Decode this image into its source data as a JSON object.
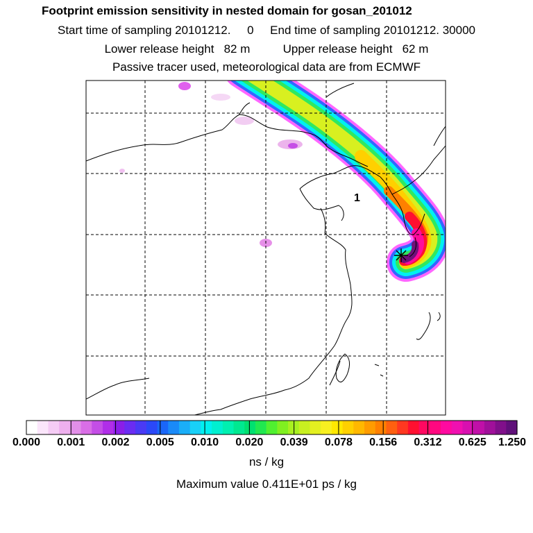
{
  "header": {
    "title": "Footprint emission sensitivity in nested domain for gosan_201012",
    "sampling_line": "Start time of sampling 20101212.     0     End time of sampling 20101212. 30000",
    "release_line": "Lower release height   82 m          Upper release height   62 m",
    "tracer_line": "Passive tracer used, meteorological data are from ECMWF"
  },
  "map": {
    "release_label": "1",
    "release_marker": "star-marker"
  },
  "colorbar": {
    "ticks": [
      "0.000",
      "0.001",
      "0.002",
      "0.005",
      "0.010",
      "0.020",
      "0.039",
      "0.078",
      "0.156",
      "0.312",
      "0.625",
      "1.250"
    ],
    "colors": [
      "#ffffff",
      "#fbe6fb",
      "#f5ccf5",
      "#eeb0ee",
      "#e28fe8",
      "#d96ee6",
      "#c44ee6",
      "#b02ee8",
      "#8a1ee8",
      "#6a2cf2",
      "#4a3af5",
      "#2b48f8",
      "#1a66f8",
      "#1a8af8",
      "#1aaef8",
      "#18d0f8",
      "#00f0f0",
      "#00f0d0",
      "#00f0b0",
      "#00e890",
      "#00e070",
      "#20e850",
      "#50f030",
      "#80f020",
      "#a8f020",
      "#c8f020",
      "#e4f020",
      "#f8f020",
      "#ffe800",
      "#ffd000",
      "#ffb800",
      "#ff9c00",
      "#ff8000",
      "#ff6010",
      "#ff3820",
      "#ff1030",
      "#ff0860",
      "#ff0880",
      "#ff0aa0",
      "#f010b0",
      "#d810b0",
      "#c010a8",
      "#a0109a",
      "#80108a",
      "#60107a"
    ],
    "units": "ns / kg",
    "max_value": "Maximum value  0.411E+01 ps / kg"
  }
}
